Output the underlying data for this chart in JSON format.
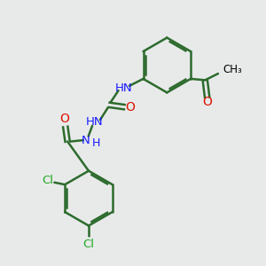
{
  "bg_color": "#e8eaea",
  "bond_color": "#2d6b2d",
  "bond_width": 1.8,
  "N_color": "#1a1aff",
  "O_color": "#dd1100",
  "Cl_color": "#22aa22",
  "figsize": [
    3.0,
    3.0
  ],
  "dpi": 100,
  "xlim": [
    0,
    10
  ],
  "ylim": [
    0,
    10
  ]
}
